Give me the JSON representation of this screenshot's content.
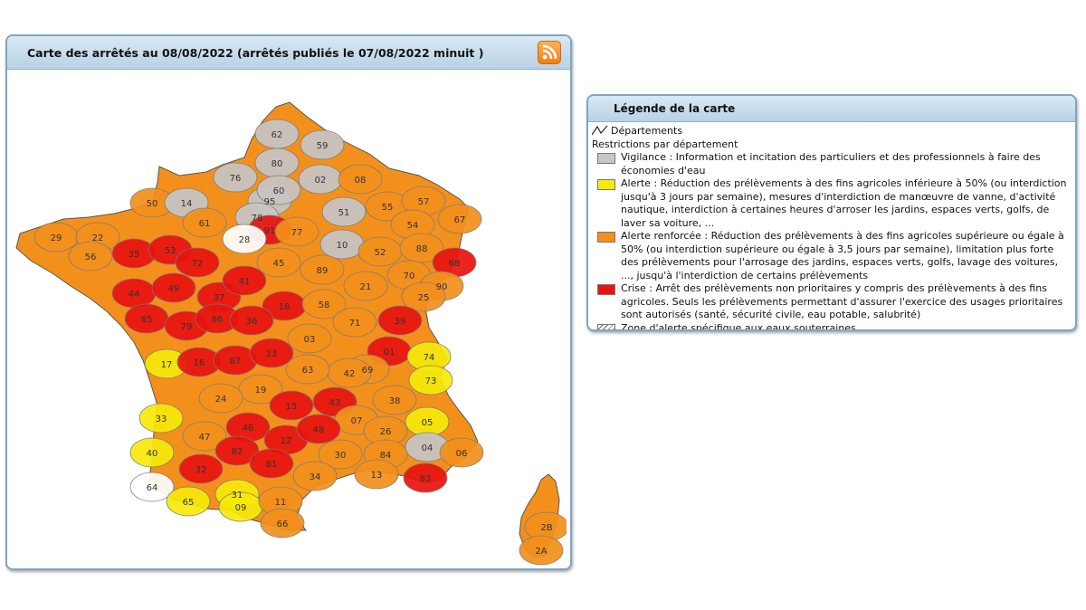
{
  "map_panel": {
    "title": "Carte des arrêtés au 08/08/2022 (arrêtés publiés le 07/08/2022 minuit )",
    "rss_icon": "rss-feed-icon"
  },
  "legend_panel": {
    "title": "Légende de la carte",
    "departments_label": "Départements",
    "restrictions_label": "Restrictions par département",
    "items": [
      {
        "key": "vigilance",
        "color": "#c6c6c6",
        "text": "Vigilance : Information et incitation des particuliers et des professionnels à faire des économies d'eau"
      },
      {
        "key": "alerte",
        "color": "#f7ea0a",
        "text": "Alerte : Réduction des prélèvements à des fins agricoles inférieure à 50% (ou interdiction jusqu'à 3 jours par semaine), mesures d'interdiction de manœuvre de vanne, d'activité nautique, interdiction à certaines heures d'arroser les jardins, espaces verts, golfs, de laver sa voiture, ..."
      },
      {
        "key": "alerte_renforcee",
        "color": "#f3901c",
        "text": "Alerte renforcée : Réduction des prélèvements à des fins agricoles supérieure ou égale à 50% (ou interdiction supérieure ou égale à 3,5 jours par semaine), limitation plus forte des prélèvements pour l'arrosage des jardins, espaces verts, golfs, lavage des voitures, ..., jusqu'à l'interdiction de certains prélèvements"
      },
      {
        "key": "crise",
        "color": "#e8130f",
        "text": "Crise : Arrêt des prélèvements non prioritaires y compris des prélèvements à des fins agricoles. Seuls les prélèvements permettant d'assurer l'exercice des usages prioritaires sont autorisés (santé, sécurité civile, eau potable, salubrité)"
      },
      {
        "key": "zone_souterraine",
        "color": "hatched",
        "text": "Zone d'alerte spécifique aux eaux souterraines"
      }
    ]
  },
  "map": {
    "outline_color": "#222222",
    "departments": [
      {
        "code": "62",
        "level": "vigilance"
      },
      {
        "code": "59",
        "level": "vigilance"
      },
      {
        "code": "80",
        "level": "vigilance"
      },
      {
        "code": "76",
        "level": "vigilance"
      },
      {
        "code": "02",
        "level": "vigilance"
      },
      {
        "code": "08",
        "level": "alerte_renforcee"
      },
      {
        "code": "50",
        "level": "alerte_renforcee"
      },
      {
        "code": "14",
        "level": "vigilance"
      },
      {
        "code": "95",
        "level": "vigilance"
      },
      {
        "code": "60",
        "level": "vigilance"
      },
      {
        "code": "55",
        "level": "alerte_renforcee"
      },
      {
        "code": "57",
        "level": "alerte_renforcee"
      },
      {
        "code": "67",
        "level": "alerte_renforcee"
      },
      {
        "code": "29",
        "level": "alerte_renforcee"
      },
      {
        "code": "22",
        "level": "alerte_renforcee"
      },
      {
        "code": "61",
        "level": "alerte_renforcee"
      },
      {
        "code": "78",
        "level": "vigilance"
      },
      {
        "code": "91",
        "level": "crise"
      },
      {
        "code": "51",
        "level": "vigilance"
      },
      {
        "code": "54",
        "level": "alerte_renforcee"
      },
      {
        "code": "56",
        "level": "alerte_renforcee"
      },
      {
        "code": "35",
        "level": "crise"
      },
      {
        "code": "53",
        "level": "crise"
      },
      {
        "code": "28",
        "level": "none"
      },
      {
        "code": "77",
        "level": "alerte_renforcee"
      },
      {
        "code": "10",
        "level": "vigilance"
      },
      {
        "code": "52",
        "level": "alerte_renforcee"
      },
      {
        "code": "88",
        "level": "alerte_renforcee"
      },
      {
        "code": "68",
        "level": "crise"
      },
      {
        "code": "72",
        "level": "crise"
      },
      {
        "code": "45",
        "level": "alerte_renforcee"
      },
      {
        "code": "89",
        "level": "alerte_renforcee"
      },
      {
        "code": "44",
        "level": "crise"
      },
      {
        "code": "49",
        "level": "crise"
      },
      {
        "code": "37",
        "level": "crise"
      },
      {
        "code": "41",
        "level": "crise"
      },
      {
        "code": "21",
        "level": "alerte_renforcee"
      },
      {
        "code": "70",
        "level": "alerte_renforcee"
      },
      {
        "code": "90",
        "level": "alerte_renforcee"
      },
      {
        "code": "18",
        "level": "crise"
      },
      {
        "code": "58",
        "level": "alerte_renforcee"
      },
      {
        "code": "25",
        "level": "alerte_renforcee"
      },
      {
        "code": "85",
        "level": "crise"
      },
      {
        "code": "79",
        "level": "crise"
      },
      {
        "code": "86",
        "level": "crise"
      },
      {
        "code": "36",
        "level": "crise"
      },
      {
        "code": "71",
        "level": "alerte_renforcee"
      },
      {
        "code": "39",
        "level": "crise"
      },
      {
        "code": "03",
        "level": "alerte_renforcee"
      },
      {
        "code": "17",
        "level": "alerte"
      },
      {
        "code": "16",
        "level": "crise"
      },
      {
        "code": "87",
        "level": "crise"
      },
      {
        "code": "23",
        "level": "crise"
      },
      {
        "code": "01",
        "level": "crise"
      },
      {
        "code": "74",
        "level": "alerte"
      },
      {
        "code": "69",
        "level": "alerte_renforcee"
      },
      {
        "code": "42",
        "level": "alerte_renforcee"
      },
      {
        "code": "63",
        "level": "alerte_renforcee"
      },
      {
        "code": "19",
        "level": "alerte_renforcee"
      },
      {
        "code": "24",
        "level": "alerte_renforcee"
      },
      {
        "code": "73",
        "level": "alerte"
      },
      {
        "code": "33",
        "level": "alerte"
      },
      {
        "code": "15",
        "level": "crise"
      },
      {
        "code": "43",
        "level": "crise"
      },
      {
        "code": "38",
        "level": "alerte_renforcee"
      },
      {
        "code": "07",
        "level": "alerte_renforcee"
      },
      {
        "code": "46",
        "level": "crise"
      },
      {
        "code": "26",
        "level": "alerte_renforcee"
      },
      {
        "code": "05",
        "level": "alerte"
      },
      {
        "code": "47",
        "level": "alerte_renforcee"
      },
      {
        "code": "12",
        "level": "crise"
      },
      {
        "code": "48",
        "level": "crise"
      },
      {
        "code": "40",
        "level": "alerte"
      },
      {
        "code": "82",
        "level": "crise"
      },
      {
        "code": "04",
        "level": "vigilance"
      },
      {
        "code": "06",
        "level": "alerte_renforcee"
      },
      {
        "code": "81",
        "level": "crise"
      },
      {
        "code": "30",
        "level": "alerte_renforcee"
      },
      {
        "code": "84",
        "level": "alerte_renforcee"
      },
      {
        "code": "32",
        "level": "crise"
      },
      {
        "code": "31",
        "level": "alerte"
      },
      {
        "code": "34",
        "level": "alerte_renforcee"
      },
      {
        "code": "13",
        "level": "alerte_renforcee"
      },
      {
        "code": "83",
        "level": "crise"
      },
      {
        "code": "64",
        "level": "none"
      },
      {
        "code": "65",
        "level": "alerte"
      },
      {
        "code": "09",
        "level": "alerte"
      },
      {
        "code": "11",
        "level": "alerte_renforcee"
      },
      {
        "code": "66",
        "level": "alerte_renforcee"
      },
      {
        "code": "2B",
        "level": "alerte_renforcee"
      },
      {
        "code": "2A",
        "level": "alerte_renforcee"
      }
    ]
  }
}
